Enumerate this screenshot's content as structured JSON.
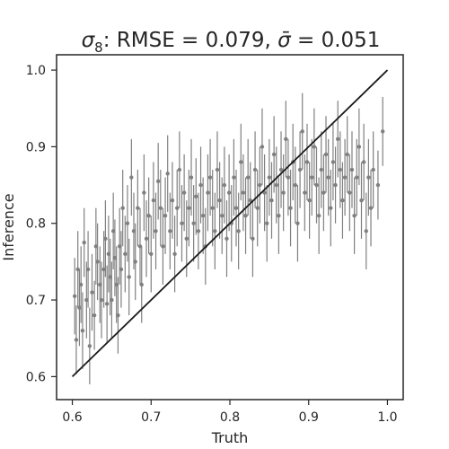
{
  "chart_data": {
    "type": "scatter",
    "title": "σ₈: RMSE = 0.079, σ̄ = 0.051",
    "title_parts": {
      "symbol": "σ",
      "subscript": "8",
      "rmse_text": ": RMSE = 0.079, ",
      "sigma_bar_symbol": "σ̄",
      "sigma_bar_value": " = 0.051"
    },
    "xlabel": "Truth",
    "ylabel": "Inference",
    "xlim": [
      0.58,
      1.02
    ],
    "ylim": [
      0.57,
      1.02
    ],
    "xticks": [
      0.6,
      0.7,
      0.8,
      0.9,
      1.0
    ],
    "yticks": [
      0.6,
      0.7,
      0.8,
      0.9,
      1.0
    ],
    "xtick_labels": [
      "0.6",
      "0.7",
      "0.8",
      "0.9",
      "1.0"
    ],
    "ytick_labels": [
      "0.6",
      "0.7",
      "0.8",
      "0.9",
      "1.0"
    ],
    "grid": false,
    "point_color": "#808080",
    "reference_line": {
      "x": [
        0.6,
        1.0
      ],
      "y": [
        0.6,
        1.0
      ],
      "color": "#1a1a1a"
    },
    "points": [
      {
        "x": 0.603,
        "y": 0.705,
        "err": 0.05
      },
      {
        "x": 0.605,
        "y": 0.648,
        "err": 0.045
      },
      {
        "x": 0.607,
        "y": 0.74,
        "err": 0.05
      },
      {
        "x": 0.609,
        "y": 0.69,
        "err": 0.05
      },
      {
        "x": 0.611,
        "y": 0.72,
        "err": 0.05
      },
      {
        "x": 0.613,
        "y": 0.66,
        "err": 0.05
      },
      {
        "x": 0.615,
        "y": 0.775,
        "err": 0.045
      },
      {
        "x": 0.618,
        "y": 0.7,
        "err": 0.05
      },
      {
        "x": 0.62,
        "y": 0.74,
        "err": 0.05
      },
      {
        "x": 0.622,
        "y": 0.64,
        "err": 0.05
      },
      {
        "x": 0.625,
        "y": 0.71,
        "err": 0.05
      },
      {
        "x": 0.628,
        "y": 0.68,
        "err": 0.045
      },
      {
        "x": 0.63,
        "y": 0.77,
        "err": 0.05
      },
      {
        "x": 0.632,
        "y": 0.75,
        "err": 0.05
      },
      {
        "x": 0.635,
        "y": 0.72,
        "err": 0.05
      },
      {
        "x": 0.637,
        "y": 0.7,
        "err": 0.05
      },
      {
        "x": 0.64,
        "y": 0.74,
        "err": 0.05
      },
      {
        "x": 0.642,
        "y": 0.78,
        "err": 0.05
      },
      {
        "x": 0.644,
        "y": 0.695,
        "err": 0.05
      },
      {
        "x": 0.646,
        "y": 0.76,
        "err": 0.05
      },
      {
        "x": 0.648,
        "y": 0.73,
        "err": 0.05
      },
      {
        "x": 0.65,
        "y": 0.7,
        "err": 0.05
      },
      {
        "x": 0.652,
        "y": 0.79,
        "err": 0.05
      },
      {
        "x": 0.654,
        "y": 0.755,
        "err": 0.05
      },
      {
        "x": 0.656,
        "y": 0.72,
        "err": 0.05
      },
      {
        "x": 0.658,
        "y": 0.68,
        "err": 0.05
      },
      {
        "x": 0.66,
        "y": 0.77,
        "err": 0.05
      },
      {
        "x": 0.662,
        "y": 0.74,
        "err": 0.05
      },
      {
        "x": 0.664,
        "y": 0.82,
        "err": 0.05
      },
      {
        "x": 0.667,
        "y": 0.76,
        "err": 0.05
      },
      {
        "x": 0.67,
        "y": 0.8,
        "err": 0.05
      },
      {
        "x": 0.672,
        "y": 0.73,
        "err": 0.05
      },
      {
        "x": 0.675,
        "y": 0.86,
        "err": 0.05
      },
      {
        "x": 0.678,
        "y": 0.79,
        "err": 0.05
      },
      {
        "x": 0.68,
        "y": 0.75,
        "err": 0.05
      },
      {
        "x": 0.683,
        "y": 0.82,
        "err": 0.05
      },
      {
        "x": 0.686,
        "y": 0.77,
        "err": 0.05
      },
      {
        "x": 0.688,
        "y": 0.72,
        "err": 0.05
      },
      {
        "x": 0.691,
        "y": 0.84,
        "err": 0.05
      },
      {
        "x": 0.694,
        "y": 0.78,
        "err": 0.05
      },
      {
        "x": 0.697,
        "y": 0.81,
        "err": 0.05
      },
      {
        "x": 0.7,
        "y": 0.76,
        "err": 0.05
      },
      {
        "x": 0.703,
        "y": 0.83,
        "err": 0.05
      },
      {
        "x": 0.706,
        "y": 0.79,
        "err": 0.05
      },
      {
        "x": 0.709,
        "y": 0.855,
        "err": 0.05
      },
      {
        "x": 0.712,
        "y": 0.82,
        "err": 0.05
      },
      {
        "x": 0.715,
        "y": 0.77,
        "err": 0.05
      },
      {
        "x": 0.718,
        "y": 0.81,
        "err": 0.05
      },
      {
        "x": 0.721,
        "y": 0.865,
        "err": 0.05
      },
      {
        "x": 0.724,
        "y": 0.79,
        "err": 0.05
      },
      {
        "x": 0.727,
        "y": 0.83,
        "err": 0.05
      },
      {
        "x": 0.73,
        "y": 0.76,
        "err": 0.05
      },
      {
        "x": 0.733,
        "y": 0.82,
        "err": 0.05
      },
      {
        "x": 0.736,
        "y": 0.87,
        "err": 0.05
      },
      {
        "x": 0.739,
        "y": 0.8,
        "err": 0.05
      },
      {
        "x": 0.742,
        "y": 0.84,
        "err": 0.05
      },
      {
        "x": 0.745,
        "y": 0.78,
        "err": 0.05
      },
      {
        "x": 0.748,
        "y": 0.82,
        "err": 0.05
      },
      {
        "x": 0.751,
        "y": 0.86,
        "err": 0.05
      },
      {
        "x": 0.754,
        "y": 0.8,
        "err": 0.05
      },
      {
        "x": 0.757,
        "y": 0.835,
        "err": 0.05
      },
      {
        "x": 0.76,
        "y": 0.79,
        "err": 0.05
      },
      {
        "x": 0.763,
        "y": 0.85,
        "err": 0.05
      },
      {
        "x": 0.766,
        "y": 0.81,
        "err": 0.05
      },
      {
        "x": 0.769,
        "y": 0.77,
        "err": 0.05
      },
      {
        "x": 0.772,
        "y": 0.84,
        "err": 0.05
      },
      {
        "x": 0.775,
        "y": 0.86,
        "err": 0.05
      },
      {
        "x": 0.778,
        "y": 0.82,
        "err": 0.05
      },
      {
        "x": 0.781,
        "y": 0.79,
        "err": 0.05
      },
      {
        "x": 0.784,
        "y": 0.87,
        "err": 0.05
      },
      {
        "x": 0.787,
        "y": 0.83,
        "err": 0.05
      },
      {
        "x": 0.79,
        "y": 0.81,
        "err": 0.05
      },
      {
        "x": 0.793,
        "y": 0.85,
        "err": 0.05
      },
      {
        "x": 0.796,
        "y": 0.78,
        "err": 0.05
      },
      {
        "x": 0.799,
        "y": 0.84,
        "err": 0.05
      },
      {
        "x": 0.802,
        "y": 0.8,
        "err": 0.05
      },
      {
        "x": 0.805,
        "y": 0.86,
        "err": 0.05
      },
      {
        "x": 0.808,
        "y": 0.82,
        "err": 0.05
      },
      {
        "x": 0.811,
        "y": 0.79,
        "err": 0.05
      },
      {
        "x": 0.814,
        "y": 0.88,
        "err": 0.05
      },
      {
        "x": 0.817,
        "y": 0.84,
        "err": 0.05
      },
      {
        "x": 0.82,
        "y": 0.81,
        "err": 0.05
      },
      {
        "x": 0.823,
        "y": 0.86,
        "err": 0.05
      },
      {
        "x": 0.826,
        "y": 0.83,
        "err": 0.05
      },
      {
        "x": 0.829,
        "y": 0.78,
        "err": 0.05
      },
      {
        "x": 0.832,
        "y": 0.87,
        "err": 0.05
      },
      {
        "x": 0.835,
        "y": 0.82,
        "err": 0.05
      },
      {
        "x": 0.838,
        "y": 0.85,
        "err": 0.05
      },
      {
        "x": 0.841,
        "y": 0.9,
        "err": 0.05
      },
      {
        "x": 0.844,
        "y": 0.84,
        "err": 0.05
      },
      {
        "x": 0.847,
        "y": 0.8,
        "err": 0.05
      },
      {
        "x": 0.85,
        "y": 0.86,
        "err": 0.05
      },
      {
        "x": 0.853,
        "y": 0.83,
        "err": 0.05
      },
      {
        "x": 0.856,
        "y": 0.89,
        "err": 0.05
      },
      {
        "x": 0.859,
        "y": 0.85,
        "err": 0.05
      },
      {
        "x": 0.862,
        "y": 0.81,
        "err": 0.05
      },
      {
        "x": 0.865,
        "y": 0.87,
        "err": 0.05
      },
      {
        "x": 0.868,
        "y": 0.84,
        "err": 0.05
      },
      {
        "x": 0.871,
        "y": 0.91,
        "err": 0.05
      },
      {
        "x": 0.874,
        "y": 0.86,
        "err": 0.05
      },
      {
        "x": 0.877,
        "y": 0.82,
        "err": 0.05
      },
      {
        "x": 0.88,
        "y": 0.88,
        "err": 0.05
      },
      {
        "x": 0.883,
        "y": 0.85,
        "err": 0.05
      },
      {
        "x": 0.886,
        "y": 0.8,
        "err": 0.05
      },
      {
        "x": 0.889,
        "y": 0.87,
        "err": 0.05
      },
      {
        "x": 0.892,
        "y": 0.92,
        "err": 0.05
      },
      {
        "x": 0.895,
        "y": 0.84,
        "err": 0.05
      },
      {
        "x": 0.898,
        "y": 0.88,
        "err": 0.05
      },
      {
        "x": 0.901,
        "y": 0.83,
        "err": 0.05
      },
      {
        "x": 0.904,
        "y": 0.86,
        "err": 0.05
      },
      {
        "x": 0.907,
        "y": 0.9,
        "err": 0.05
      },
      {
        "x": 0.91,
        "y": 0.85,
        "err": 0.05
      },
      {
        "x": 0.913,
        "y": 0.81,
        "err": 0.05
      },
      {
        "x": 0.916,
        "y": 0.87,
        "err": 0.05
      },
      {
        "x": 0.919,
        "y": 0.84,
        "err": 0.05
      },
      {
        "x": 0.922,
        "y": 0.89,
        "err": 0.05
      },
      {
        "x": 0.925,
        "y": 0.86,
        "err": 0.05
      },
      {
        "x": 0.928,
        "y": 0.82,
        "err": 0.05
      },
      {
        "x": 0.931,
        "y": 0.88,
        "err": 0.05
      },
      {
        "x": 0.934,
        "y": 0.85,
        "err": 0.05
      },
      {
        "x": 0.937,
        "y": 0.91,
        "err": 0.05
      },
      {
        "x": 0.94,
        "y": 0.87,
        "err": 0.05
      },
      {
        "x": 0.943,
        "y": 0.83,
        "err": 0.05
      },
      {
        "x": 0.946,
        "y": 0.86,
        "err": 0.05
      },
      {
        "x": 0.949,
        "y": 0.89,
        "err": 0.05
      },
      {
        "x": 0.952,
        "y": 0.84,
        "err": 0.05
      },
      {
        "x": 0.955,
        "y": 0.87,
        "err": 0.05
      },
      {
        "x": 0.958,
        "y": 0.81,
        "err": 0.05
      },
      {
        "x": 0.961,
        "y": 0.86,
        "err": 0.05
      },
      {
        "x": 0.964,
        "y": 0.9,
        "err": 0.05
      },
      {
        "x": 0.967,
        "y": 0.83,
        "err": 0.05
      },
      {
        "x": 0.97,
        "y": 0.88,
        "err": 0.05
      },
      {
        "x": 0.973,
        "y": 0.79,
        "err": 0.05
      },
      {
        "x": 0.976,
        "y": 0.86,
        "err": 0.05
      },
      {
        "x": 0.979,
        "y": 0.82,
        "err": 0.05
      },
      {
        "x": 0.982,
        "y": 0.87,
        "err": 0.05
      },
      {
        "x": 0.988,
        "y": 0.85,
        "err": 0.045
      },
      {
        "x": 0.994,
        "y": 0.92,
        "err": 0.045
      }
    ]
  }
}
